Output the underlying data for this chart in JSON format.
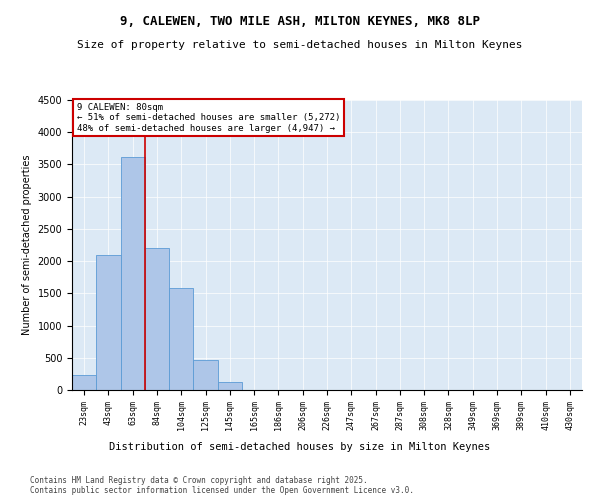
{
  "title": "9, CALEWEN, TWO MILE ASH, MILTON KEYNES, MK8 8LP",
  "subtitle": "Size of property relative to semi-detached houses in Milton Keynes",
  "xlabel": "Distribution of semi-detached houses by size in Milton Keynes",
  "ylabel": "Number of semi-detached properties",
  "categories": [
    "23sqm",
    "43sqm",
    "63sqm",
    "84sqm",
    "104sqm",
    "125sqm",
    "145sqm",
    "165sqm",
    "186sqm",
    "206sqm",
    "226sqm",
    "247sqm",
    "267sqm",
    "287sqm",
    "308sqm",
    "328sqm",
    "349sqm",
    "369sqm",
    "389sqm",
    "410sqm",
    "430sqm"
  ],
  "values": [
    230,
    2100,
    3620,
    2200,
    1580,
    460,
    120,
    0,
    0,
    0,
    0,
    0,
    0,
    0,
    0,
    0,
    0,
    0,
    0,
    0,
    0
  ],
  "bar_color": "#aec6e8",
  "bar_edge_color": "#5b9bd5",
  "vline_pos": 2.5,
  "vline_color": "#cc0000",
  "annotation_title": "9 CALEWEN: 80sqm",
  "annotation_line1": "← 51% of semi-detached houses are smaller (5,272)",
  "annotation_line2": "48% of semi-detached houses are larger (4,947) →",
  "annotation_box_color": "#cc0000",
  "ylim": [
    0,
    4500
  ],
  "yticks": [
    0,
    500,
    1000,
    1500,
    2000,
    2500,
    3000,
    3500,
    4000,
    4500
  ],
  "background_color": "#dce9f5",
  "footer_line1": "Contains HM Land Registry data © Crown copyright and database right 2025.",
  "footer_line2": "Contains public sector information licensed under the Open Government Licence v3.0.",
  "title_fontsize": 9,
  "subtitle_fontsize": 8
}
